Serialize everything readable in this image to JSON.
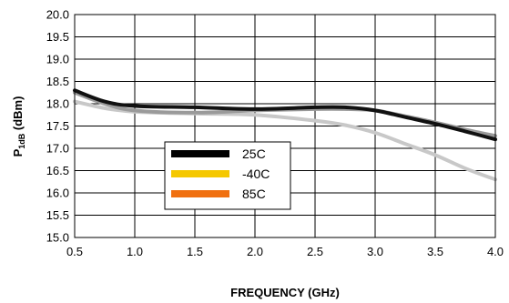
{
  "chart_data": {
    "type": "line",
    "title": "",
    "xlabel": "FREQUENCY (GHz)",
    "ylabel_main": "P",
    "ylabel_sub": "1dB",
    "ylabel_rest": " (dBm)",
    "xlim": [
      0.5,
      4.0
    ],
    "ylim": [
      15.0,
      20.0
    ],
    "x_ticks": [
      "0.5",
      "1.0",
      "1.5",
      "2.0",
      "2.5",
      "3.0",
      "3.5",
      "4.0"
    ],
    "y_ticks": [
      "15.0",
      "15.5",
      "16.0",
      "16.5",
      "17.0",
      "17.5",
      "18.0",
      "18.5",
      "19.0",
      "19.5",
      "20.0"
    ],
    "grid": true,
    "legend_position": "lower-center",
    "series": [
      {
        "name": "-40C",
        "color": "#c8c8c8",
        "legend_color": "#f5c800",
        "x": [
          0.5,
          0.75,
          1.0,
          1.5,
          2.0,
          2.5,
          2.75,
          3.0,
          3.25,
          3.5,
          3.75,
          4.0
        ],
        "y": [
          18.05,
          17.9,
          17.82,
          17.78,
          17.75,
          17.62,
          17.52,
          17.35,
          17.1,
          16.85,
          16.55,
          16.3
        ]
      },
      {
        "name": "85C",
        "color": "#9a9a9a",
        "legend_color": "#f07010",
        "x": [
          0.5,
          0.75,
          1.0,
          1.5,
          2.0,
          2.5,
          2.75,
          3.0,
          3.25,
          3.5,
          3.75,
          4.0
        ],
        "y": [
          18.25,
          18.0,
          17.85,
          17.8,
          17.85,
          17.88,
          17.88,
          17.85,
          17.72,
          17.58,
          17.42,
          17.28
        ]
      },
      {
        "name": "25C",
        "color": "#111111",
        "legend_color": "#000000",
        "x": [
          0.5,
          0.75,
          1.0,
          1.5,
          2.0,
          2.5,
          2.75,
          3.0,
          3.25,
          3.5,
          3.75,
          4.0
        ],
        "y": [
          18.3,
          18.05,
          17.95,
          17.92,
          17.88,
          17.92,
          17.92,
          17.85,
          17.7,
          17.55,
          17.38,
          17.2
        ]
      }
    ],
    "legend_order": [
      "25C",
      "-40C",
      "85C"
    ]
  }
}
